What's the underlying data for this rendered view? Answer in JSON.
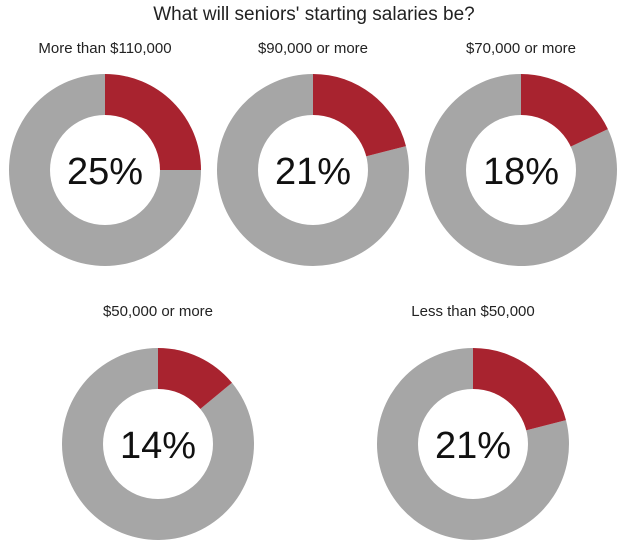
{
  "chart_data": {
    "type": "pie",
    "title": "What will seniors' starting salaries be?",
    "colors": {
      "highlight": "#a8232f",
      "remainder": "#a6a6a6",
      "center": "#ffffff"
    },
    "panels": [
      {
        "label": "More than $110,000",
        "value": 25,
        "display": "25%"
      },
      {
        "label": "$90,000 or more",
        "value": 21,
        "display": "21%"
      },
      {
        "label": "$70,000 or more",
        "value": 18,
        "display": "18%"
      },
      {
        "label": "$50,000 or more",
        "value": 14,
        "display": "14%"
      },
      {
        "label": "Less than $50,000",
        "value": 21,
        "display": "21%"
      }
    ]
  }
}
